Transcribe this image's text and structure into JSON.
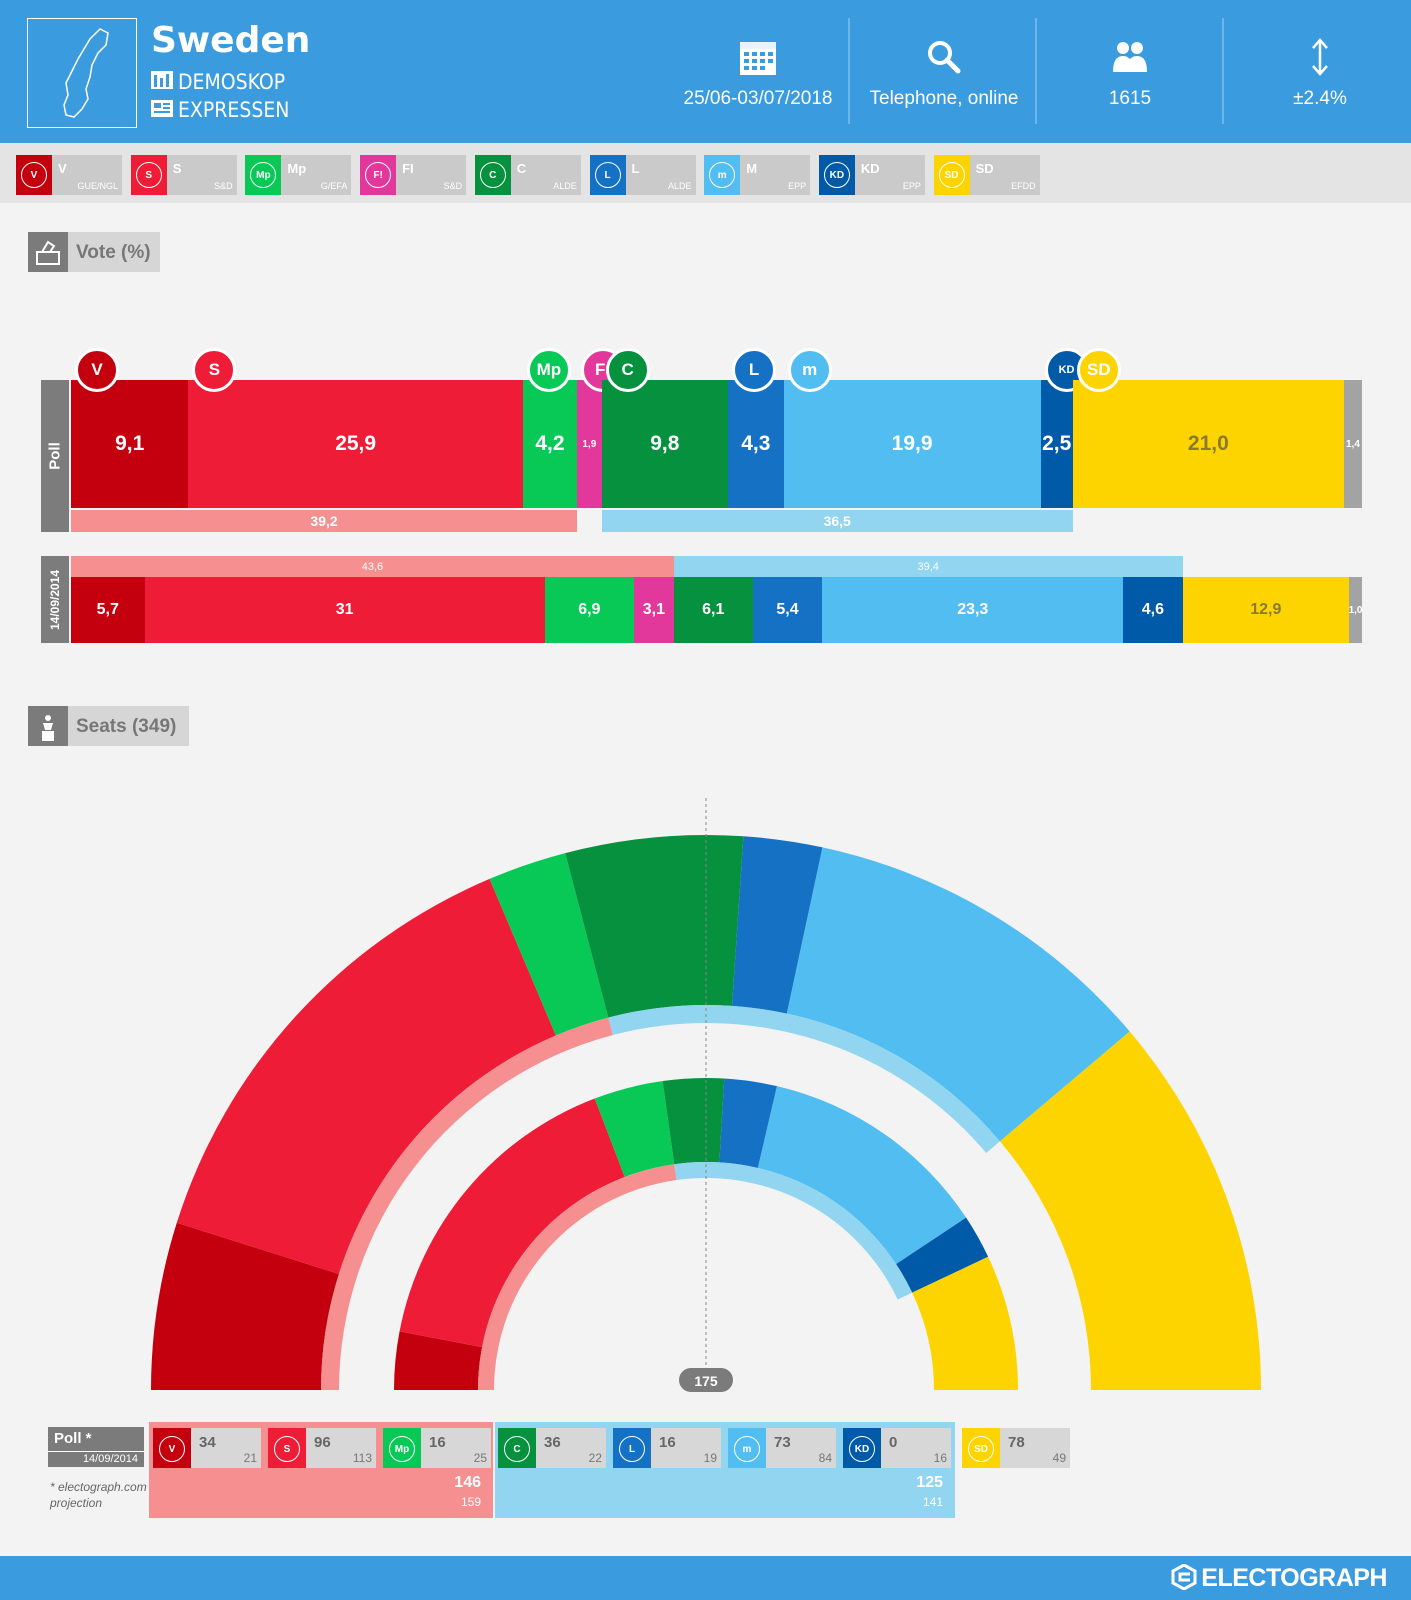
{
  "header": {
    "country": "Sweden",
    "pollster": "DEMOSKOP",
    "client": "EXPRESSEN",
    "dates": "25/06-03/07/2018",
    "method": "Telephone, online",
    "sample": "1615",
    "margin": "±2.4%"
  },
  "parties": [
    {
      "abbr": "V",
      "group": "GUE/NGL",
      "color": "#c4000e"
    },
    {
      "abbr": "S",
      "group": "S&D",
      "color": "#ee1c37"
    },
    {
      "abbr": "Mp",
      "group": "G/EFA",
      "color": "#08c956"
    },
    {
      "abbr": "FI",
      "group": "S&D",
      "color": "#e2389c"
    },
    {
      "abbr": "C",
      "group": "ALDE",
      "color": "#05913e"
    },
    {
      "abbr": "L",
      "group": "ALDE",
      "color": "#1571c4"
    },
    {
      "abbr": "M",
      "group": "EPP",
      "color": "#52bdf0"
    },
    {
      "abbr": "KD",
      "group": "EPP",
      "color": "#005aa8"
    },
    {
      "abbr": "SD",
      "group": "EFDD",
      "color": "#fed400"
    }
  ],
  "vote_section": {
    "title": "Vote (%)"
  },
  "seats_section": {
    "title": "Seats (349)"
  },
  "chart_data": [
    {
      "type": "bar",
      "orientation": "horizontal-stacked",
      "title": "Vote (%)",
      "series": [
        {
          "name": "Poll",
          "categories": [
            "V",
            "S",
            "Mp",
            "FI",
            "C",
            "L",
            "M",
            "KD",
            "SD",
            "Others"
          ],
          "values": [
            "9,1",
            "25,9",
            "4,2",
            "1,9",
            "9,8",
            "4,3",
            "19,9",
            "2,5",
            "21,0",
            "1,4"
          ],
          "blocs": [
            {
              "name": "left",
              "value": "39,2"
            },
            {
              "name": "right",
              "value": "36,5"
            }
          ]
        },
        {
          "name": "14/09/2014",
          "categories": [
            "V",
            "S",
            "Mp",
            "FI",
            "C",
            "L",
            "M",
            "KD",
            "SD",
            "Others"
          ],
          "values": [
            "5,7",
            "31",
            "6,9",
            "3,1",
            "6,1",
            "5,4",
            "23,3",
            "4,6",
            "12,9",
            "1,0"
          ],
          "blocs": [
            {
              "name": "left",
              "value": "43,6"
            },
            {
              "name": "right",
              "value": "39,4"
            }
          ]
        }
      ]
    },
    {
      "type": "hemicycle",
      "title": "Seats (349)",
      "majority": "175",
      "categories": [
        "V",
        "S",
        "Mp",
        "C",
        "L",
        "M",
        "KD",
        "SD"
      ],
      "series": [
        {
          "name": "Poll *",
          "values": [
            34,
            96,
            16,
            36,
            16,
            73,
            0,
            78
          ]
        },
        {
          "name": "14/09/2014",
          "values": [
            21,
            113,
            25,
            22,
            19,
            84,
            16,
            49
          ]
        }
      ],
      "blocs": [
        {
          "name": "left",
          "poll": 146,
          "prev": 159
        },
        {
          "name": "right",
          "poll": 125,
          "prev": 141
        }
      ]
    }
  ],
  "seat_table": {
    "poll_label": "Poll *",
    "prev_label": "14/09/2014",
    "note1": "* electograph.com",
    "note2": "projection"
  },
  "footer": {
    "brand": "ELECTOGRAPH"
  }
}
